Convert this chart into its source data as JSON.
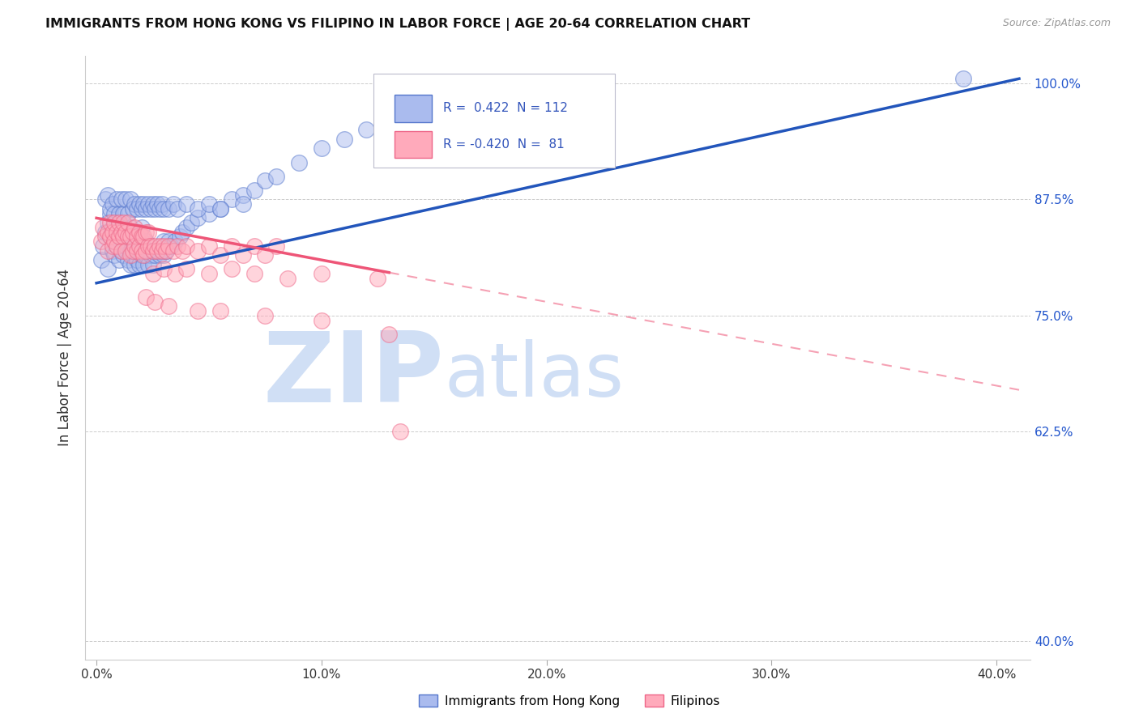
{
  "title": "IMMIGRANTS FROM HONG KONG VS FILIPINO IN LABOR FORCE | AGE 20-64 CORRELATION CHART",
  "source": "Source: ZipAtlas.com",
  "ylabel": "In Labor Force | Age 20-64",
  "y_ticks": [
    40.0,
    62.5,
    75.0,
    87.5,
    100.0
  ],
  "y_tick_labels": [
    "40.0%",
    "62.5%",
    "75.0%",
    "87.5%",
    "100.0%"
  ],
  "x_ticks": [
    0.0,
    10.0,
    20.0,
    30.0,
    40.0
  ],
  "x_tick_labels": [
    "0.0%",
    "10.0%",
    "20.0%",
    "30.0%",
    "40.0%"
  ],
  "legend_R_color": "#3355bb",
  "blue_fill": "#aabbee",
  "blue_edge": "#5577cc",
  "pink_fill": "#ffaabb",
  "pink_edge": "#ee6688",
  "blue_line_color": "#2255bb",
  "pink_line_color": "#ee5577",
  "watermark_color": "#d0dff5",
  "grid_color": "#cccccc",
  "xmin": -0.5,
  "xmax": 41.5,
  "ymin": 38.0,
  "ymax": 103.0,
  "blue_trend_x0": 0.0,
  "blue_trend_y0": 78.5,
  "blue_trend_x1": 41.0,
  "blue_trend_y1": 100.5,
  "pink_trend_x0": 0.0,
  "pink_trend_y0": 85.5,
  "pink_trend_x1": 41.0,
  "pink_trend_y1": 67.0,
  "pink_solid_end_x": 13.0,
  "blue_scatter_x": [
    0.2,
    0.3,
    0.4,
    0.5,
    0.5,
    0.6,
    0.6,
    0.7,
    0.7,
    0.8,
    0.8,
    0.9,
    0.9,
    1.0,
    1.0,
    1.0,
    1.1,
    1.1,
    1.2,
    1.2,
    1.3,
    1.3,
    1.4,
    1.4,
    1.5,
    1.5,
    1.5,
    1.6,
    1.6,
    1.7,
    1.7,
    1.8,
    1.8,
    1.9,
    1.9,
    2.0,
    2.0,
    2.0,
    2.1,
    2.1,
    2.2,
    2.2,
    2.3,
    2.3,
    2.4,
    2.5,
    2.5,
    2.6,
    2.7,
    2.8,
    2.9,
    3.0,
    3.0,
    3.1,
    3.2,
    3.3,
    3.5,
    3.7,
    3.8,
    4.0,
    4.2,
    4.5,
    5.0,
    5.5,
    6.0,
    6.5,
    7.0,
    7.5,
    8.0,
    9.0,
    10.0,
    11.0,
    12.0,
    14.0,
    16.0,
    18.0,
    38.5,
    0.4,
    0.5,
    0.6,
    0.7,
    0.8,
    0.9,
    1.0,
    1.1,
    1.2,
    1.3,
    1.4,
    1.5,
    1.6,
    1.7,
    1.8,
    1.9,
    2.0,
    2.1,
    2.2,
    2.3,
    2.4,
    2.5,
    2.6,
    2.7,
    2.8,
    2.9,
    3.0,
    3.2,
    3.4,
    3.6,
    4.0,
    4.5,
    5.0,
    5.5,
    6.5
  ],
  "blue_scatter_y": [
    81.0,
    82.5,
    84.0,
    80.0,
    85.0,
    83.5,
    86.0,
    82.0,
    84.5,
    81.5,
    83.0,
    82.5,
    84.0,
    81.0,
    83.5,
    85.0,
    82.0,
    84.5,
    81.5,
    83.0,
    82.5,
    84.0,
    81.0,
    83.5,
    80.5,
    82.0,
    84.5,
    81.5,
    83.0,
    80.5,
    82.5,
    81.0,
    83.5,
    80.5,
    82.0,
    81.5,
    83.0,
    84.5,
    80.5,
    82.0,
    81.5,
    83.0,
    80.5,
    82.0,
    81.5,
    80.5,
    82.0,
    81.5,
    82.0,
    81.5,
    82.0,
    81.5,
    83.0,
    82.0,
    83.0,
    82.5,
    83.0,
    83.5,
    84.0,
    84.5,
    85.0,
    85.5,
    86.0,
    86.5,
    87.5,
    88.0,
    88.5,
    89.5,
    90.0,
    91.5,
    93.0,
    94.0,
    95.0,
    96.5,
    97.5,
    98.5,
    100.5,
    87.5,
    88.0,
    86.5,
    87.0,
    86.0,
    87.5,
    86.0,
    87.5,
    86.0,
    87.5,
    86.0,
    87.5,
    86.5,
    87.0,
    86.5,
    87.0,
    86.5,
    87.0,
    86.5,
    87.0,
    86.5,
    87.0,
    86.5,
    87.0,
    86.5,
    87.0,
    86.5,
    86.5,
    87.0,
    86.5,
    87.0,
    86.5,
    87.0,
    86.5,
    87.0
  ],
  "pink_scatter_x": [
    0.2,
    0.3,
    0.4,
    0.5,
    0.5,
    0.6,
    0.6,
    0.7,
    0.7,
    0.8,
    0.8,
    0.9,
    0.9,
    1.0,
    1.0,
    1.1,
    1.1,
    1.2,
    1.2,
    1.3,
    1.3,
    1.4,
    1.4,
    1.5,
    1.5,
    1.6,
    1.6,
    1.7,
    1.7,
    1.8,
    1.8,
    1.9,
    1.9,
    2.0,
    2.0,
    2.1,
    2.1,
    2.2,
    2.2,
    2.3,
    2.3,
    2.4,
    2.5,
    2.6,
    2.7,
    2.8,
    2.9,
    3.0,
    3.1,
    3.2,
    3.4,
    3.6,
    3.8,
    4.0,
    4.5,
    5.0,
    5.5,
    6.0,
    6.5,
    7.0,
    7.5,
    8.0,
    2.5,
    3.0,
    3.5,
    4.0,
    5.0,
    6.0,
    7.0,
    8.5,
    10.0,
    12.5,
    2.2,
    2.6,
    3.2,
    4.5,
    5.5,
    7.5,
    10.0,
    13.0,
    13.5
  ],
  "pink_scatter_y": [
    83.0,
    84.5,
    83.5,
    82.0,
    84.0,
    83.5,
    85.0,
    82.5,
    84.0,
    83.0,
    85.0,
    82.5,
    84.0,
    83.5,
    85.0,
    82.0,
    84.0,
    83.5,
    85.0,
    82.0,
    84.0,
    83.5,
    85.0,
    81.5,
    83.5,
    82.0,
    84.0,
    82.5,
    84.5,
    82.0,
    83.5,
    82.5,
    84.0,
    82.0,
    83.5,
    81.5,
    83.5,
    82.0,
    84.0,
    82.5,
    84.0,
    82.5,
    82.0,
    82.5,
    82.0,
    82.5,
    82.0,
    82.5,
    82.0,
    82.5,
    82.0,
    82.5,
    82.0,
    82.5,
    82.0,
    82.5,
    81.5,
    82.5,
    81.5,
    82.5,
    81.5,
    82.5,
    79.5,
    80.0,
    79.5,
    80.0,
    79.5,
    80.0,
    79.5,
    79.0,
    79.5,
    79.0,
    77.0,
    76.5,
    76.0,
    75.5,
    75.5,
    75.0,
    74.5,
    73.0,
    62.5
  ]
}
